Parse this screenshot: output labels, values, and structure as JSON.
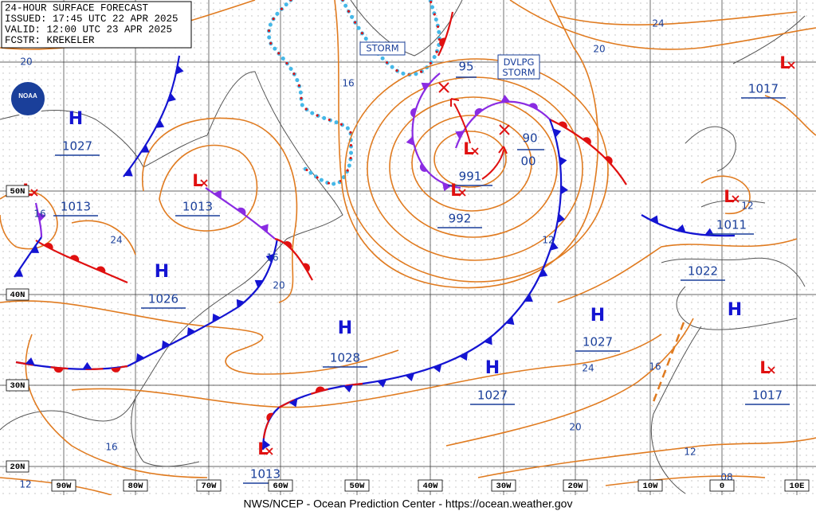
{
  "header": {
    "lines": [
      "24-HOUR SURFACE FORECAST",
      "ISSUED: 17:45 UTC 22 APR 2025",
      "VALID: 12:00 UTC 23 APR 2025",
      "FCSTR: KREKELER"
    ]
  },
  "logo": "NOAA",
  "footer": "NWS/NCEP - Ocean Prediction Center - https://ocean.weather.gov",
  "centers": [
    {
      "symbol": "H",
      "pressure": "1027"
    },
    {
      "symbol": "L",
      "pressure": "1013"
    },
    {
      "symbol": "L",
      "pressure": "1013"
    },
    {
      "symbol": "H",
      "pressure": "1026"
    },
    {
      "symbol": "H",
      "pressure": "1028"
    },
    {
      "symbol": "H",
      "pressure": "1027"
    },
    {
      "symbol": "H",
      "pressure": "1027"
    },
    {
      "symbol": "L",
      "pressure": "991"
    },
    {
      "symbol": "L",
      "pressure": "992"
    },
    {
      "symbol": "L",
      "pressure": "1017"
    },
    {
      "symbol": "L",
      "pressure": "1011"
    },
    {
      "symbol": "H",
      "pressure": "1022"
    },
    {
      "symbol": "L",
      "pressure": "1017"
    },
    {
      "symbol": "L",
      "pressure": "1013"
    }
  ],
  "storm_labels": [
    "STORM",
    "DVLPG STORM"
  ],
  "annotations": [
    "95",
    "90",
    "00"
  ],
  "isobar_labels": [
    "20",
    "16",
    "20",
    "24",
    "16",
    "24",
    "16",
    "20",
    "12",
    "12",
    "24",
    "16",
    "20",
    "16",
    "12",
    "08",
    "12"
  ],
  "latitude_labels": [
    "50N",
    "40N",
    "30N",
    "20N"
  ],
  "longitude_labels": [
    "90W",
    "80W",
    "70W",
    "60W",
    "50W",
    "40W",
    "30W",
    "20W",
    "10W",
    "0",
    "10E"
  ]
}
